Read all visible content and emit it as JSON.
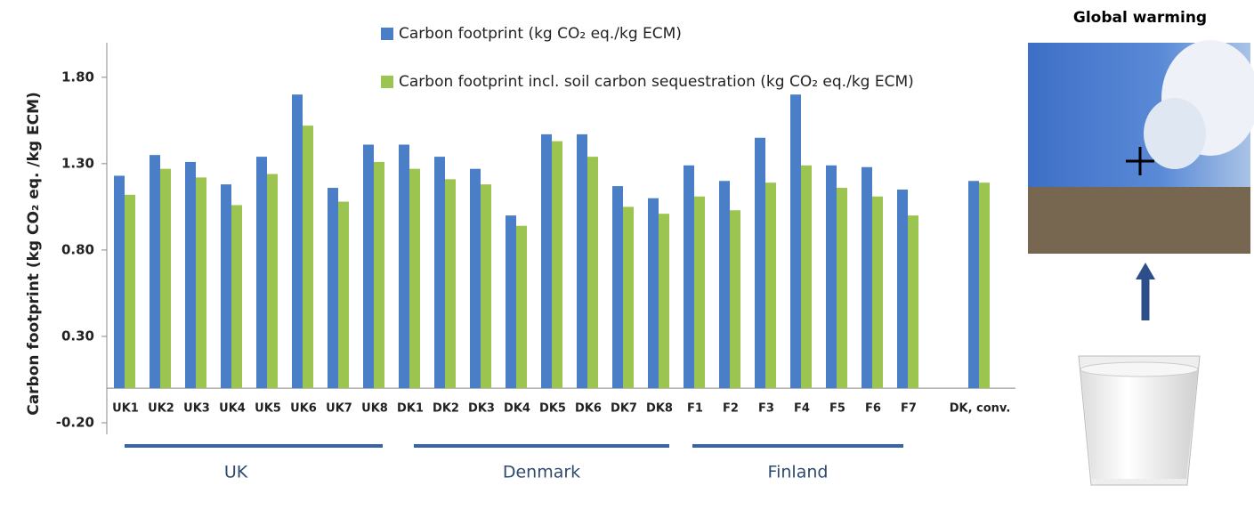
{
  "chart_data": {
    "type": "bar",
    "y_label": "Carbon footprint (kg CO₂ eq. /kg ECM)",
    "categories": [
      "UK1",
      "UK2",
      "UK3",
      "UK4",
      "UK5",
      "UK6",
      "UK7",
      "UK8",
      "DK1",
      "DK2",
      "DK3",
      "DK4",
      "DK5",
      "DK6",
      "DK7",
      "DK8",
      "F1",
      "F2",
      "F3",
      "F4",
      "F5",
      "F6",
      "F7",
      null,
      "DK, conv."
    ],
    "series": [
      {
        "name": "Carbon footprint (kg CO₂ eq./kg ECM)",
        "color": "#4a7ec6",
        "values": [
          1.23,
          1.35,
          1.31,
          1.18,
          1.34,
          1.7,
          1.16,
          1.41,
          1.41,
          1.34,
          1.27,
          1.0,
          1.47,
          1.47,
          1.17,
          1.1,
          1.29,
          1.2,
          1.45,
          1.7,
          1.29,
          1.28,
          1.15,
          null,
          1.2
        ]
      },
      {
        "name": "Carbon footprint incl. soil carbon sequestration (kg CO₂ eq./kg ECM)",
        "color": "#9bc550",
        "values": [
          1.12,
          1.27,
          1.22,
          1.06,
          1.24,
          1.52,
          1.08,
          1.31,
          1.27,
          1.21,
          1.18,
          0.94,
          1.43,
          1.34,
          1.05,
          1.01,
          1.11,
          1.03,
          1.19,
          1.29,
          1.16,
          1.11,
          1.0,
          null,
          1.19
        ]
      }
    ],
    "groups": [
      "UK",
      "Denmark",
      "Finland"
    ],
    "ylim": [
      -0.2,
      2.0
    ],
    "yticks": [
      {
        "value": -0.2,
        "label": "-0.20"
      },
      {
        "value": 0.3,
        "label": "0.30"
      },
      {
        "value": 0.8,
        "label": "0.80"
      },
      {
        "value": 1.3,
        "label": "1.30"
      },
      {
        "value": 1.8,
        "label": "1.80"
      }
    ]
  },
  "side_panel": {
    "title": "Global warming"
  }
}
